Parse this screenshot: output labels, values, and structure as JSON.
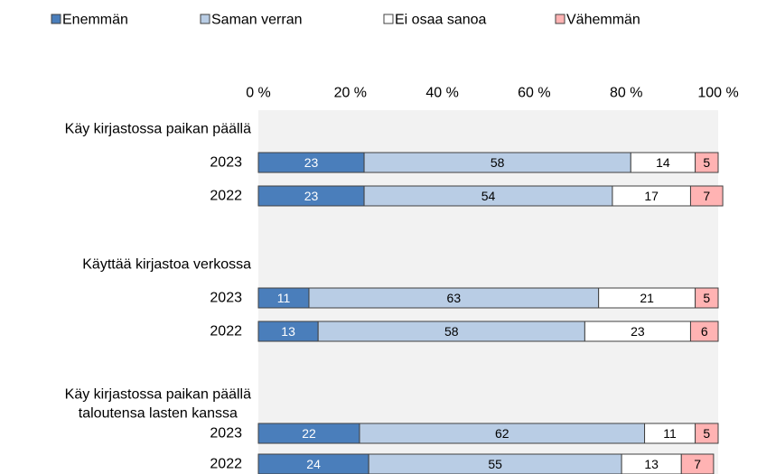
{
  "chart_data": {
    "type": "stacked_barh",
    "groups": [
      {
        "label": [
          "Käy kirjastossa paikan päällä"
        ],
        "categories": [
          "2023",
          "2022"
        ]
      },
      {
        "label": [
          "Käyttää kirjastoa verkossa"
        ],
        "categories": [
          "2023",
          "2022"
        ]
      },
      {
        "label": [
          "Käy kirjastossa paikan päällä",
          "taloutensa lasten kanssa"
        ],
        "categories": [
          "2023",
          "2022"
        ]
      }
    ],
    "series": [
      {
        "name": "Enemmän",
        "color": "#4a7ebb",
        "text_color": "#ffffff",
        "values": [
          23,
          23,
          11,
          13,
          22,
          24
        ]
      },
      {
        "name": "Saman verran",
        "color": "#b9cde5",
        "text_color": "#000000",
        "values": [
          58,
          54,
          63,
          58,
          62,
          55
        ]
      },
      {
        "name": "Ei osaa sanoa",
        "color": "#ffffff",
        "text_color": "#000000",
        "values": [
          14,
          17,
          21,
          23,
          11,
          13
        ]
      },
      {
        "name": "Vähemmän",
        "color": "#ffb3b3",
        "text_color": "#000000",
        "values": [
          5,
          7,
          5,
          6,
          5,
          7
        ]
      }
    ],
    "xlim": [
      0,
      100
    ],
    "xticks": [
      {
        "value": 0,
        "label": "0 %"
      },
      {
        "value": 20,
        "label": "20 %"
      },
      {
        "value": 40,
        "label": "40 %"
      },
      {
        "value": 60,
        "label": "60 %"
      },
      {
        "value": 80,
        "label": "80 %"
      },
      {
        "value": 100,
        "label": "100 %"
      }
    ],
    "legend": "top"
  }
}
